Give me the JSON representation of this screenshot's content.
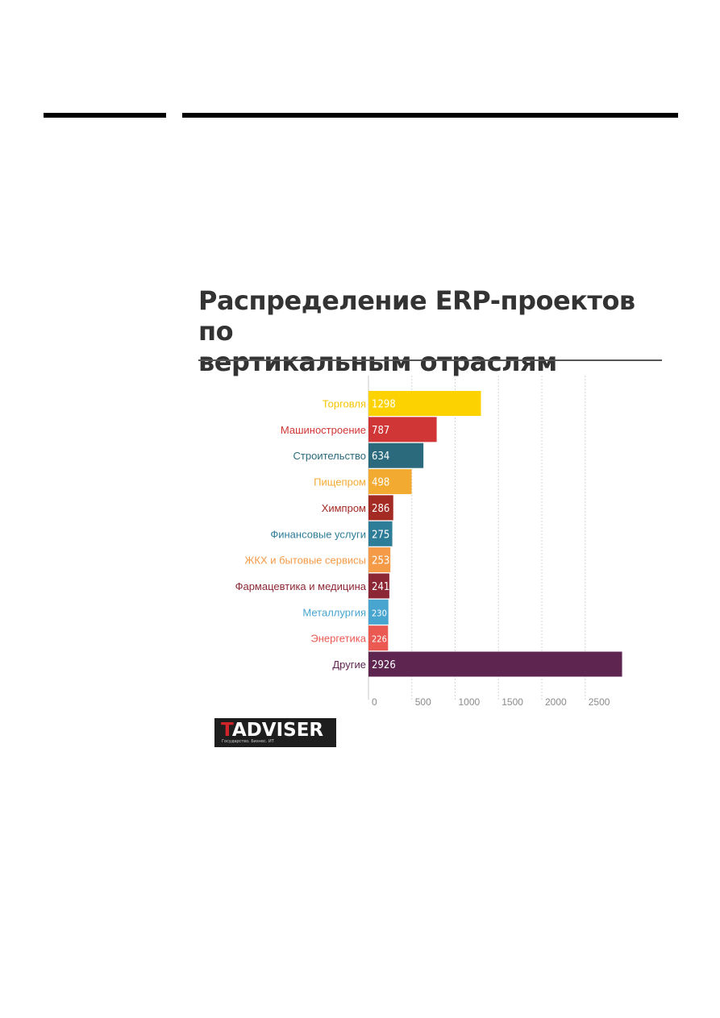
{
  "page": {
    "title_line1": "Распределение ERP-проектов по",
    "title_line2": "вертикальным отраслям"
  },
  "logo": {
    "first_letter": "T",
    "rest": "ADVISER",
    "tagline": "Государство. Бизнес. ИТ"
  },
  "chart_data": {
    "type": "bar",
    "orientation": "horizontal",
    "title": "Распределение ERP-проектов по вертикальным отраслям",
    "categories": [
      "Торговля",
      "Машиностроение",
      "Строительство",
      "Пищепром",
      "Химпром",
      "Финансовые услуги",
      "ЖКХ и бытовые сервисы",
      "Фармацевтика и медицина",
      "Металлургия",
      "Энергетика",
      "Другие"
    ],
    "values": [
      1298,
      787,
      634,
      498,
      286,
      275,
      253,
      241,
      230,
      226,
      2926
    ],
    "value_labels": [
      "1298",
      "787",
      "634",
      "498",
      "286",
      "275",
      "253",
      "241",
      "230",
      "226",
      "2926"
    ],
    "colors": [
      "#fcd200",
      "#d13636",
      "#2a6a7c",
      "#f2ab30",
      "#a42a24",
      "#2e7d98",
      "#f59a46",
      "#8c2735",
      "#47a5cf",
      "#ea5952",
      "#5d2550"
    ],
    "label_colors": [
      "#f4c400",
      "#d13636",
      "#2a6a7c",
      "#f2ab30",
      "#a42a24",
      "#2e7d98",
      "#f59a46",
      "#8c2735",
      "#47a5cf",
      "#ea5952",
      "#5d2550"
    ],
    "x_ticks": [
      0,
      500,
      1000,
      1500,
      2000,
      2500
    ],
    "x_tick_labels": [
      "0",
      "500",
      "1000",
      "1500",
      "2000",
      "2500"
    ],
    "xlim": [
      0,
      2926
    ],
    "grid": true
  }
}
